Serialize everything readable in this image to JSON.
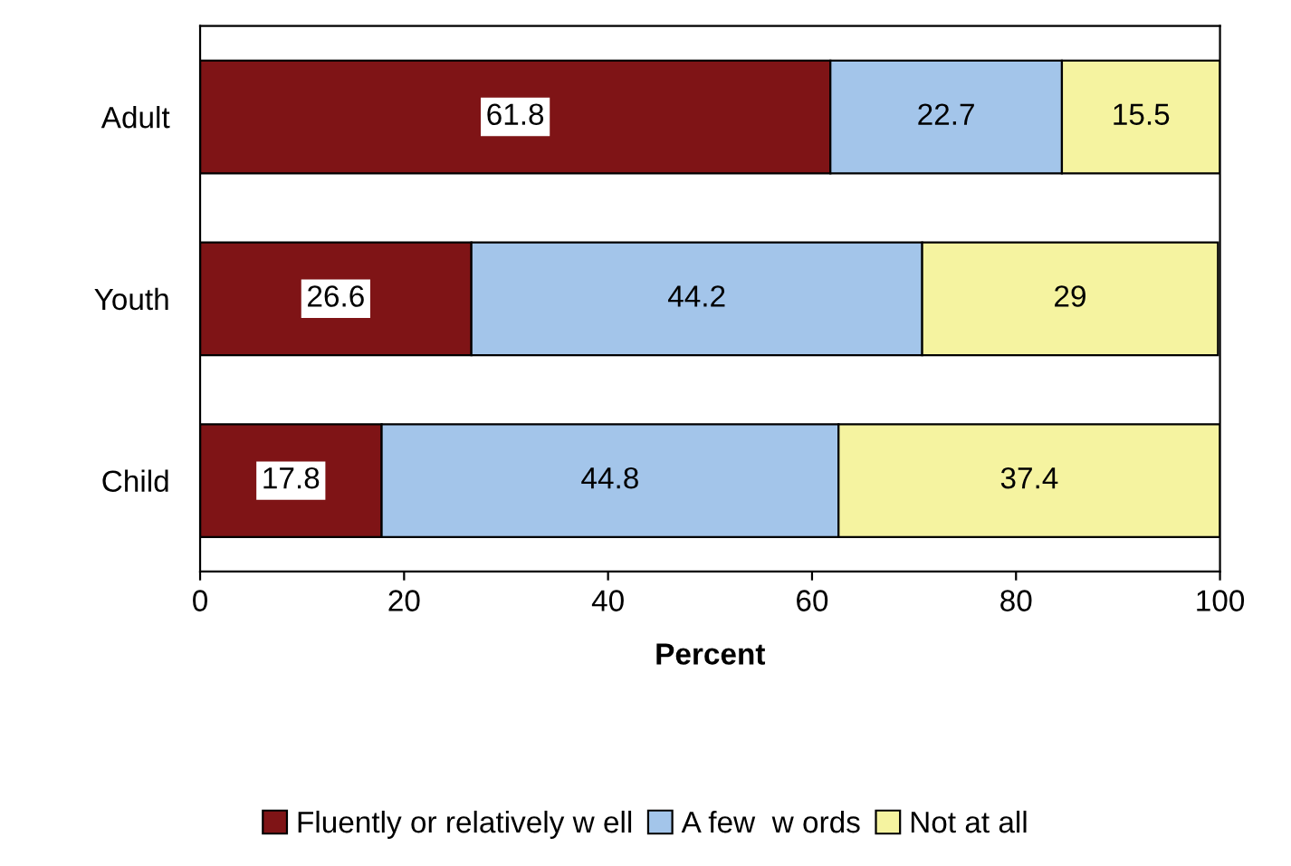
{
  "chart_data": {
    "type": "bar",
    "orientation": "horizontal",
    "stacked": true,
    "categories": [
      "Adult",
      "Youth",
      "Child"
    ],
    "series": [
      {
        "name": "Fluently or relatively w ell",
        "color": "#7f1416",
        "values": [
          61.8,
          26.6,
          17.8
        ]
      },
      {
        "name": "A few  w ords",
        "color": "#a3c5ea",
        "values": [
          22.7,
          44.2,
          44.8
        ]
      },
      {
        "name": "Not at all",
        "color": "#f5f3a0",
        "values": [
          15.5,
          29,
          37.4
        ]
      }
    ],
    "xlim": [
      0,
      100
    ],
    "xticks": [
      0,
      20,
      40,
      60,
      80,
      100
    ],
    "xlabel": "Percent",
    "data_labels": true,
    "legend": "bottom",
    "grid": false
  }
}
